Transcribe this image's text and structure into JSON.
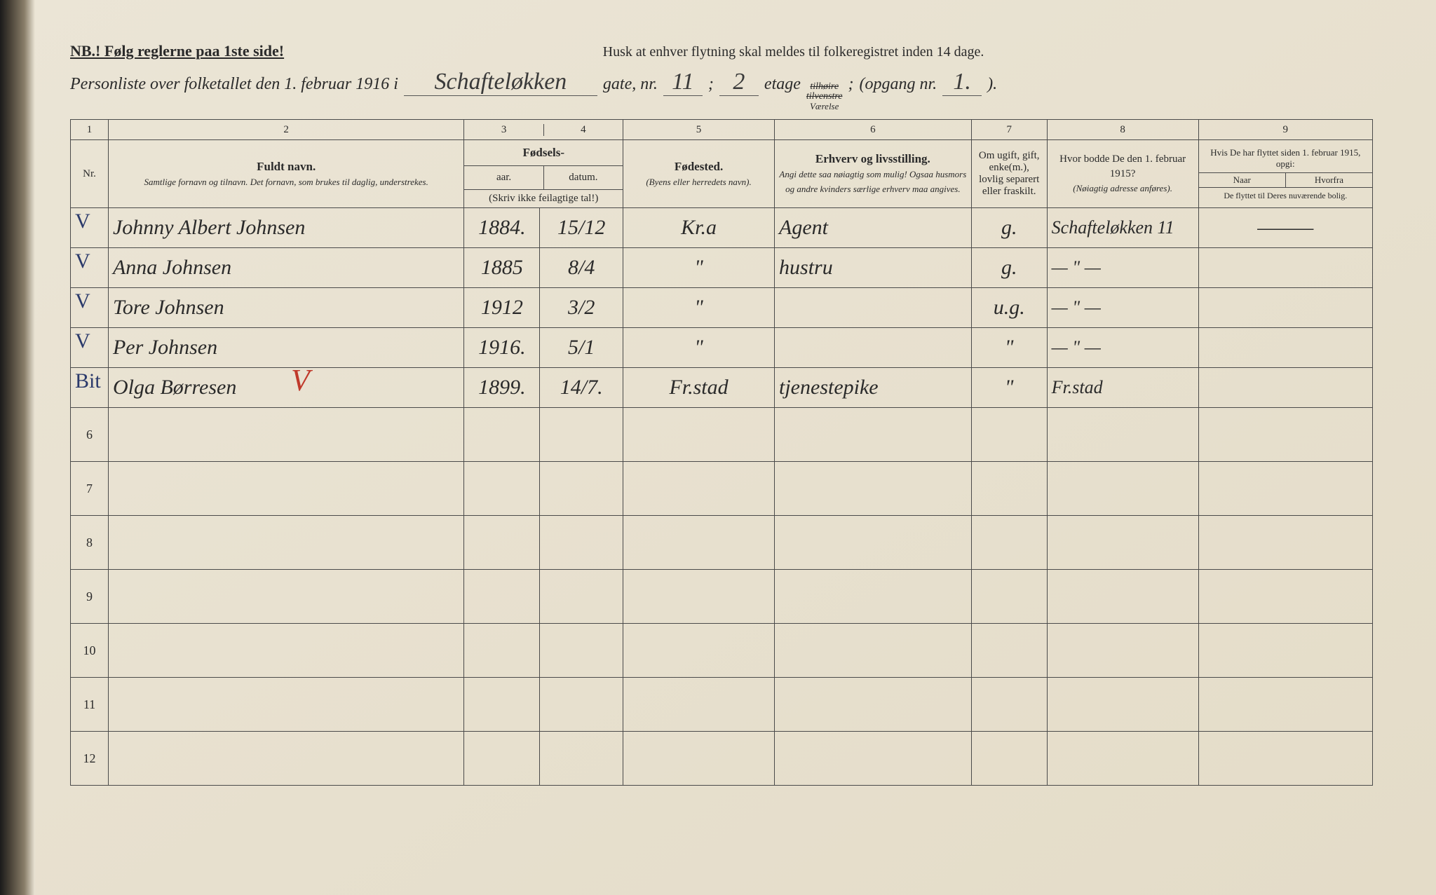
{
  "header": {
    "nb_text": "NB.! Følg reglerne paa 1ste side!",
    "husk_text": "Husk at enhver flytning skal meldes til folkeregistret inden 14 dage.",
    "title_prefix": "Personliste over folketallet den 1. februar 1916 i",
    "street_hw": "Schafteløkken",
    "gate_label": "gate, nr.",
    "gate_nr_hw": "11",
    "semicolon": ";",
    "etage_hw": "2",
    "etage_label": "etage",
    "strike1": "tilhøire",
    "strike2": "tilvenstre",
    "strike_sub": "Værelse",
    "opgang_label": "(opgang nr.",
    "opgang_hw": "1.",
    "close_paren": ")."
  },
  "colnums": [
    "1",
    "2",
    "3",
    "4",
    "5",
    "6",
    "7",
    "8",
    "9"
  ],
  "headers": {
    "nr": "Nr.",
    "c2_title": "Fuldt navn.",
    "c2_sub": "Samtlige fornavn og tilnavn. Det fornavn, som brukes til daglig, understrekes.",
    "c34_title": "Fødsels-",
    "c3": "aar.",
    "c4": "datum.",
    "c34_note": "(Skriv ikke feilagtige tal!)",
    "c5_title": "Fødested.",
    "c5_sub": "(Byens eller herredets navn).",
    "c6_title": "Erhverv og livsstilling.",
    "c6_sub": "Angi dette saa nøiagtig som mulig! Ogsaa husmors og andre kvinders særlige erhverv maa angives.",
    "c7": "Om ugift, gift, enke(m.), lovlig separert eller fraskilt.",
    "c8_title": "Hvor bodde De den 1. februar 1915?",
    "c8_sub": "(Nøiagtig adresse anføres).",
    "c9_top": "Hvis De har flyttet siden 1. februar 1915, opgi:",
    "c9_naar": "Naar",
    "c9_hvorfra": "Hvorfra",
    "c9_bot": "De flyttet til Deres nuværende bolig."
  },
  "rows": [
    {
      "nr": "",
      "check": "V",
      "name": "Johnny Albert Johnsen",
      "year": "1884.",
      "date": "15/12",
      "place": "Kr.a",
      "occ": "Agent",
      "status": "g.",
      "prev": "Schafteløkken 11",
      "c9": "———"
    },
    {
      "nr": "",
      "check": "V",
      "name": "Anna Johnsen",
      "year": "1885",
      "date": "8/4",
      "place": "\"",
      "occ": "hustru",
      "status": "g.",
      "prev": "— \" —",
      "c9": ""
    },
    {
      "nr": "",
      "check": "V",
      "name": "Tore Johnsen",
      "year": "1912",
      "date": "3/2",
      "place": "\"",
      "occ": "",
      "status": "u.g.",
      "prev": "— \" —",
      "c9": ""
    },
    {
      "nr": "",
      "check": "V",
      "name": "Per Johnsen",
      "year": "1916.",
      "date": "5/1",
      "place": "\"",
      "occ": "",
      "status": "\"",
      "prev": "— \" —",
      "c9": ""
    },
    {
      "nr": "",
      "check": "Bit",
      "name": "Olga Børresen",
      "year": "1899.",
      "date": "14/7.",
      "place": "Fr.stad",
      "occ": "tjenestepike",
      "status": "\"",
      "prev": "Fr.stad",
      "c9": ""
    }
  ],
  "empty_rows": [
    "6",
    "7",
    "8",
    "9",
    "10",
    "11",
    "12"
  ],
  "colwidths": {
    "c1": "50px",
    "c2": "470px",
    "c3": "100px",
    "c4": "110px",
    "c5": "200px",
    "c6": "260px",
    "c7": "100px",
    "c8": "200px",
    "c9": "230px"
  }
}
